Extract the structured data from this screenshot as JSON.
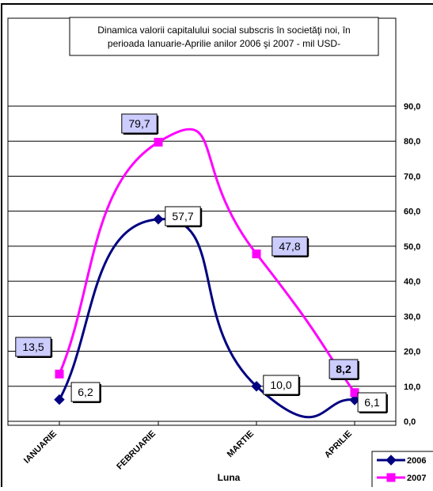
{
  "chart_data": {
    "type": "line",
    "title_lines": [
      "Dinamica  valorii capitalului social subscris în societăţi noi,  în",
      "perioada Ianuarie-Aprilie anilor 2006 şi 2007  - mil  USD-"
    ],
    "xlabel": "Luna",
    "ylabel": "",
    "categories": [
      "IANUARIE",
      "FEBRUARIE",
      "MARTIE",
      "APRILIE"
    ],
    "ylim": [
      0,
      90
    ],
    "yticks": [
      {
        "value": 0,
        "label": "0,0"
      },
      {
        "value": 10,
        "label": "10,0"
      },
      {
        "value": 20,
        "label": "20,0"
      },
      {
        "value": 30,
        "label": "30,0"
      },
      {
        "value": 40,
        "label": "40,0"
      },
      {
        "value": 50,
        "label": "50,0"
      },
      {
        "value": 60,
        "label": "60,0"
      },
      {
        "value": 70,
        "label": "70,0"
      },
      {
        "value": 80,
        "label": "80,0"
      },
      {
        "value": 90,
        "label": "90,0"
      }
    ],
    "grid": true,
    "legend_position": "bottom-right",
    "series": [
      {
        "name": "2006",
        "color": "#000080",
        "marker": "diamond",
        "values": [
          6.2,
          57.7,
          10.0,
          6.1
        ],
        "labels": [
          "6,2",
          "57,7",
          "10,0",
          "6,1"
        ],
        "label_bg": "#ffffff"
      },
      {
        "name": "2007",
        "color": "#ff00ff",
        "marker": "square",
        "values": [
          13.5,
          79.7,
          47.8,
          8.2
        ],
        "labels": [
          "13,5",
          "79,7",
          "47,8",
          "8,2"
        ],
        "label_bg": "#ccccff"
      }
    ]
  }
}
